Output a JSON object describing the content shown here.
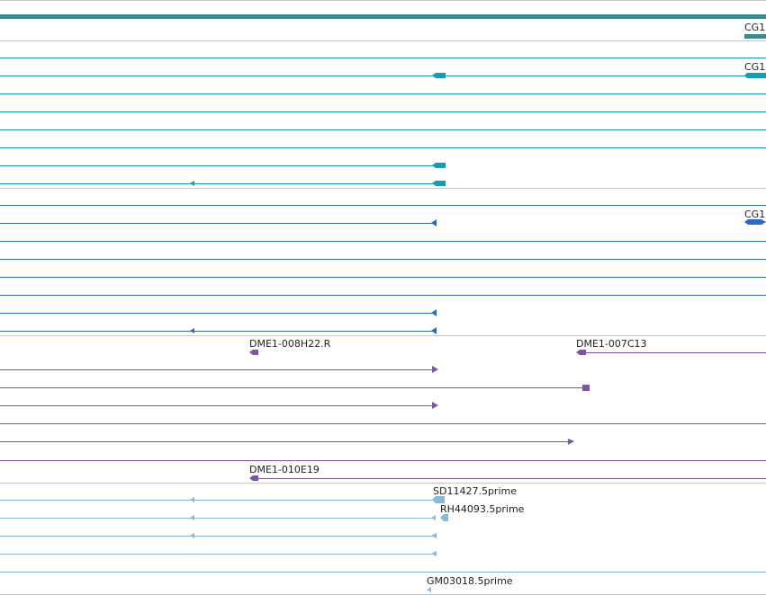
{
  "colors": {
    "gene": "#3a8c8c",
    "transcript": "#1a9bb5",
    "protein": "#2a6abf",
    "clone": "#7a55a8",
    "est": "#8cb8d8",
    "divider": "#c8c8c8"
  },
  "tracks": [
    {
      "id": "gene-track",
      "color_key": "gene",
      "features": [
        {
          "label": "CG1",
          "kind": "gene-bar"
        }
      ]
    },
    {
      "id": "transcript-track",
      "color_key": "transcript",
      "features": [
        {
          "label": "CG1",
          "kind": "transcript"
        }
      ]
    },
    {
      "id": "protein-track",
      "color_key": "protein",
      "features": [
        {
          "label": "CG1",
          "kind": "protein"
        }
      ]
    },
    {
      "id": "clone-track",
      "color_key": "clone",
      "features": [
        {
          "label": "DME1-008H22.R",
          "kind": "clone"
        },
        {
          "label": "DME1-007C13",
          "kind": "clone"
        },
        {
          "label": "DME1-010E19",
          "kind": "clone"
        }
      ]
    },
    {
      "id": "est-track",
      "color_key": "est",
      "features": [
        {
          "label": "SD11427.5prime",
          "kind": "est"
        },
        {
          "label": "RH44093.5prime",
          "kind": "est"
        },
        {
          "label": "GM03018.5prime",
          "kind": "est"
        }
      ]
    }
  ]
}
